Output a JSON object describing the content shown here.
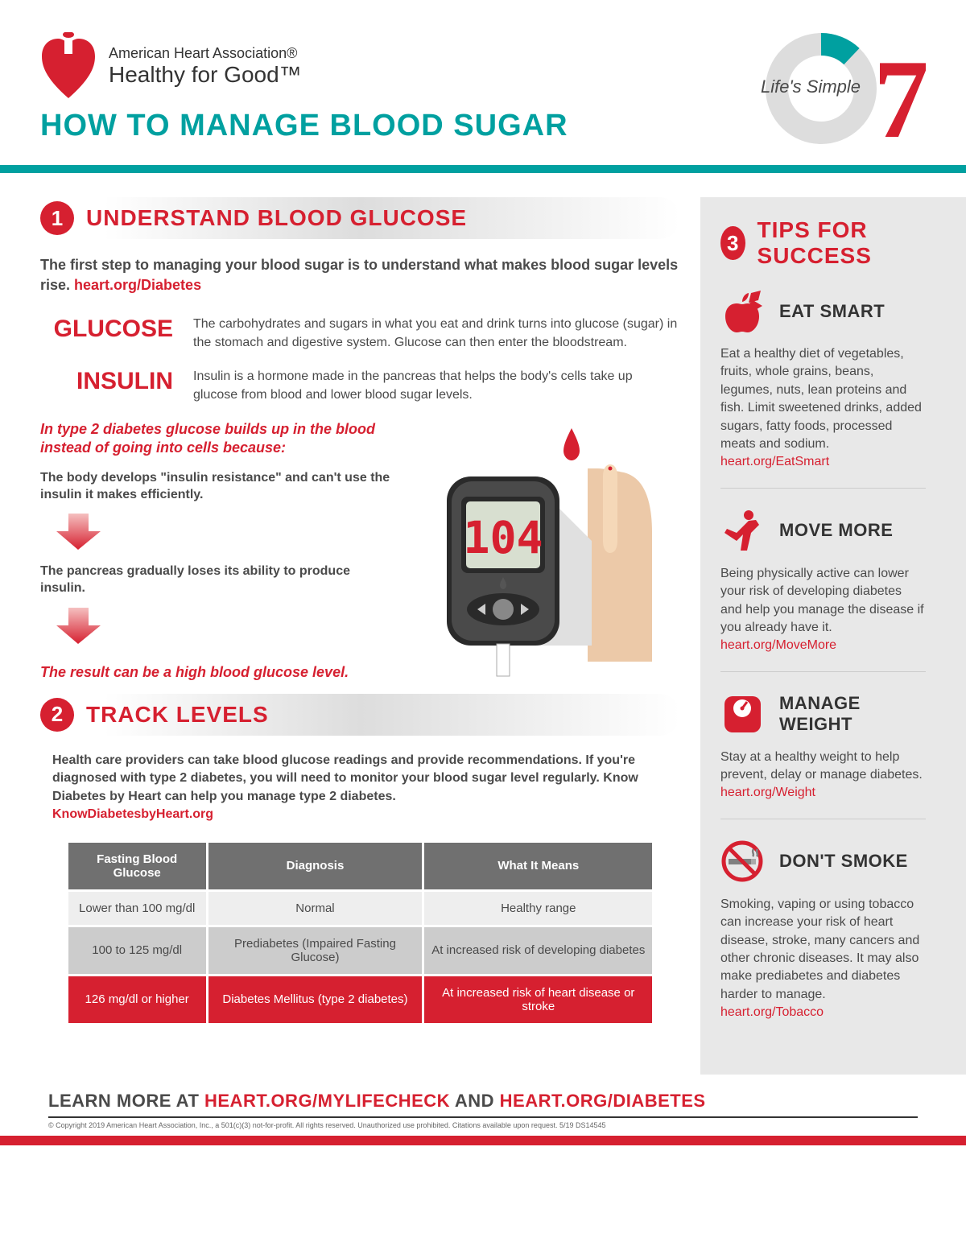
{
  "colors": {
    "red": "#d62030",
    "teal": "#00a0a0",
    "gray": "#707070",
    "light_gray": "#e8e8e8"
  },
  "header": {
    "org": "American Heart Association®",
    "tagline": "Healthy for Good™",
    "ls7": "Life's Simple",
    "title": "HOW TO MANAGE BLOOD SUGAR"
  },
  "s1": {
    "num": "1",
    "title": "UNDERSTAND BLOOD GLUCOSE",
    "intro": "The first step to managing your blood sugar is to understand what makes blood sugar levels rise. ",
    "intro_link": "heart.org/Diabetes",
    "glucose_term": "GLUCOSE",
    "glucose_def": "The carbohydrates and sugars in what you eat and drink turns into glucose (sugar) in the stomach and digestive system. Glucose can then enter the bloodstream.",
    "insulin_term": "INSULIN",
    "insulin_def": "Insulin is a hormone made in the pancreas that helps the body's cells take up glucose from blood and lower blood sugar levels.",
    "t2_intro": "In type 2 diabetes glucose builds up in the blood instead of going into cells because:",
    "t2_step1": "The body develops \"insulin resistance\" and can't use the insulin it makes efficiently.",
    "t2_step2": "The pancreas gradually loses its ability to produce insulin.",
    "t2_result": "The result can be a high blood glucose level.",
    "meter_value": "104"
  },
  "s2": {
    "num": "2",
    "title": "TRACK LEVELS",
    "intro": "Health care providers can take blood glucose readings and provide recommendations. If you're diagnosed with type 2 diabetes, you will need to monitor your blood sugar level regularly. Know Diabetes by Heart can help you manage type 2 diabetes. ",
    "intro_link": "KnowDiabetesbyHeart.org",
    "cols": [
      "Fasting Blood Glucose",
      "Diagnosis",
      "What It Means"
    ],
    "rows": [
      {
        "cls": "r-light",
        "c": [
          "Lower than 100 mg/dl",
          "Normal",
          "Healthy range"
        ]
      },
      {
        "cls": "r-mid",
        "c": [
          "100 to 125 mg/dl",
          "Prediabetes (Impaired Fasting Glucose)",
          "At increased risk of developing diabetes"
        ]
      },
      {
        "cls": "r-red",
        "c": [
          "126 mg/dl or higher",
          "Diabetes Mellitus (type 2 diabetes)",
          "At increased risk of heart disease or stroke"
        ]
      }
    ]
  },
  "s3": {
    "num": "3",
    "title": "TIPS FOR SUCCESS",
    "tips": [
      {
        "icon": "apple",
        "title": "EAT SMART",
        "text": "Eat a healthy diet of vegetables, fruits, whole grains, beans, legumes, nuts, lean proteins and fish. Limit sweetened drinks, added sugars,  fatty foods, processed meats and sodium. ",
        "link": "heart.org/EatSmart"
      },
      {
        "icon": "move",
        "title": "MOVE MORE",
        "text": "Being physically active can lower your risk of developing diabetes and help you manage the disease if you already have it. ",
        "link": "heart.org/MoveMore"
      },
      {
        "icon": "scale",
        "title": "MANAGE WEIGHT",
        "text": "Stay at a healthy weight to help prevent, delay or manage diabetes. ",
        "link": "heart.org/Weight"
      },
      {
        "icon": "nosmoking",
        "title": "DON'T SMOKE",
        "text": "Smoking, vaping or using tobacco can increase your risk of heart disease, stroke, many cancers and other chronic diseases. It may also make prediabetes and diabetes harder to manage. ",
        "link": "heart.org/Tobacco"
      }
    ]
  },
  "footer": {
    "learn_pre": "LEARN MORE AT ",
    "learn1": "HEART.ORG/MYLIFECHECK",
    "learn_mid": " AND ",
    "learn2": "HEART.ORG/DIABETES",
    "copyright": "© Copyright 2019 American Heart Association, Inc., a 501(c)(3) not-for-profit. All rights reserved. Unauthorized use prohibited. Citations available upon request. 5/19 DS14545"
  }
}
